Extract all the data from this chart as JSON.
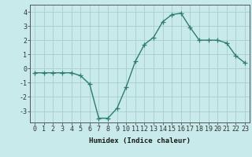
{
  "x": [
    0,
    1,
    2,
    3,
    4,
    5,
    6,
    7,
    8,
    9,
    10,
    11,
    12,
    13,
    14,
    15,
    16,
    17,
    18,
    19,
    20,
    21,
    22,
    23
  ],
  "y": [
    -0.3,
    -0.3,
    -0.3,
    -0.3,
    -0.3,
    -0.5,
    -1.1,
    -3.5,
    -3.5,
    -2.8,
    -1.3,
    0.5,
    1.7,
    2.2,
    3.3,
    3.8,
    3.9,
    2.9,
    2.0,
    2.0,
    2.0,
    1.8,
    0.9,
    0.4
  ],
  "line_color": "#2e7d6e",
  "marker": "+",
  "marker_size": 4,
  "linewidth": 1.0,
  "bg_color": "#c8eaea",
  "grid_color": "#a8cccc",
  "xlabel": "Humidex (Indice chaleur)",
  "xlim_min": -0.5,
  "xlim_max": 23.5,
  "ylim_min": -3.8,
  "ylim_max": 4.5,
  "yticks": [
    -3,
    -2,
    -1,
    0,
    1,
    2,
    3,
    4
  ],
  "xticks": [
    0,
    1,
    2,
    3,
    4,
    5,
    6,
    7,
    8,
    9,
    10,
    11,
    12,
    13,
    14,
    15,
    16,
    17,
    18,
    19,
    20,
    21,
    22,
    23
  ],
  "xlabel_fontsize": 6.5,
  "tick_fontsize": 6.0,
  "spine_color": "#555555"
}
